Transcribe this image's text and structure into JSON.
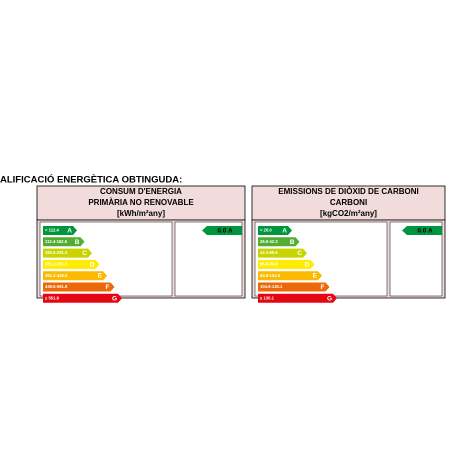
{
  "header": {
    "title": "ALIFICACIÓ ENERGÈTICA OBTINGUDA:"
  },
  "panels": [
    {
      "heading": [
        "CONSUM D'ENERGIA",
        "PRIMÀRIA NO RENOVABLE",
        "[kWh/m²any]"
      ],
      "scale": [
        {
          "range": "< 112.4",
          "letter": "A"
        },
        {
          "range": "112.4-182.5",
          "letter": "B"
        },
        {
          "range": "182.5-281.3",
          "letter": "C"
        },
        {
          "range": "281.3-351.2",
          "letter": "D"
        },
        {
          "range": "351.2-449.5",
          "letter": "E"
        },
        {
          "range": "449.5-561.9",
          "letter": "F"
        },
        {
          "range": "≥ 561.9",
          "letter": "G"
        }
      ],
      "rating": "0.0 A"
    },
    {
      "heading": [
        "EMISSIONS DE DIÒXID DE CARBONI",
        "CARBONI",
        "[kgCO2/m²any]"
      ],
      "scale": [
        {
          "range": "< 26.0",
          "letter": "A"
        },
        {
          "range": "26.0-42.3",
          "letter": "B"
        },
        {
          "range": "42.3-65.5",
          "letter": "C"
        },
        {
          "range": "65.5-84.9",
          "letter": "D"
        },
        {
          "range": "84.9-104.6",
          "letter": "E"
        },
        {
          "range": "104.6-130.1",
          "letter": "F"
        },
        {
          "range": "≥ 130.1",
          "letter": "G"
        }
      ],
      "rating": "0.0 A"
    }
  ]
}
